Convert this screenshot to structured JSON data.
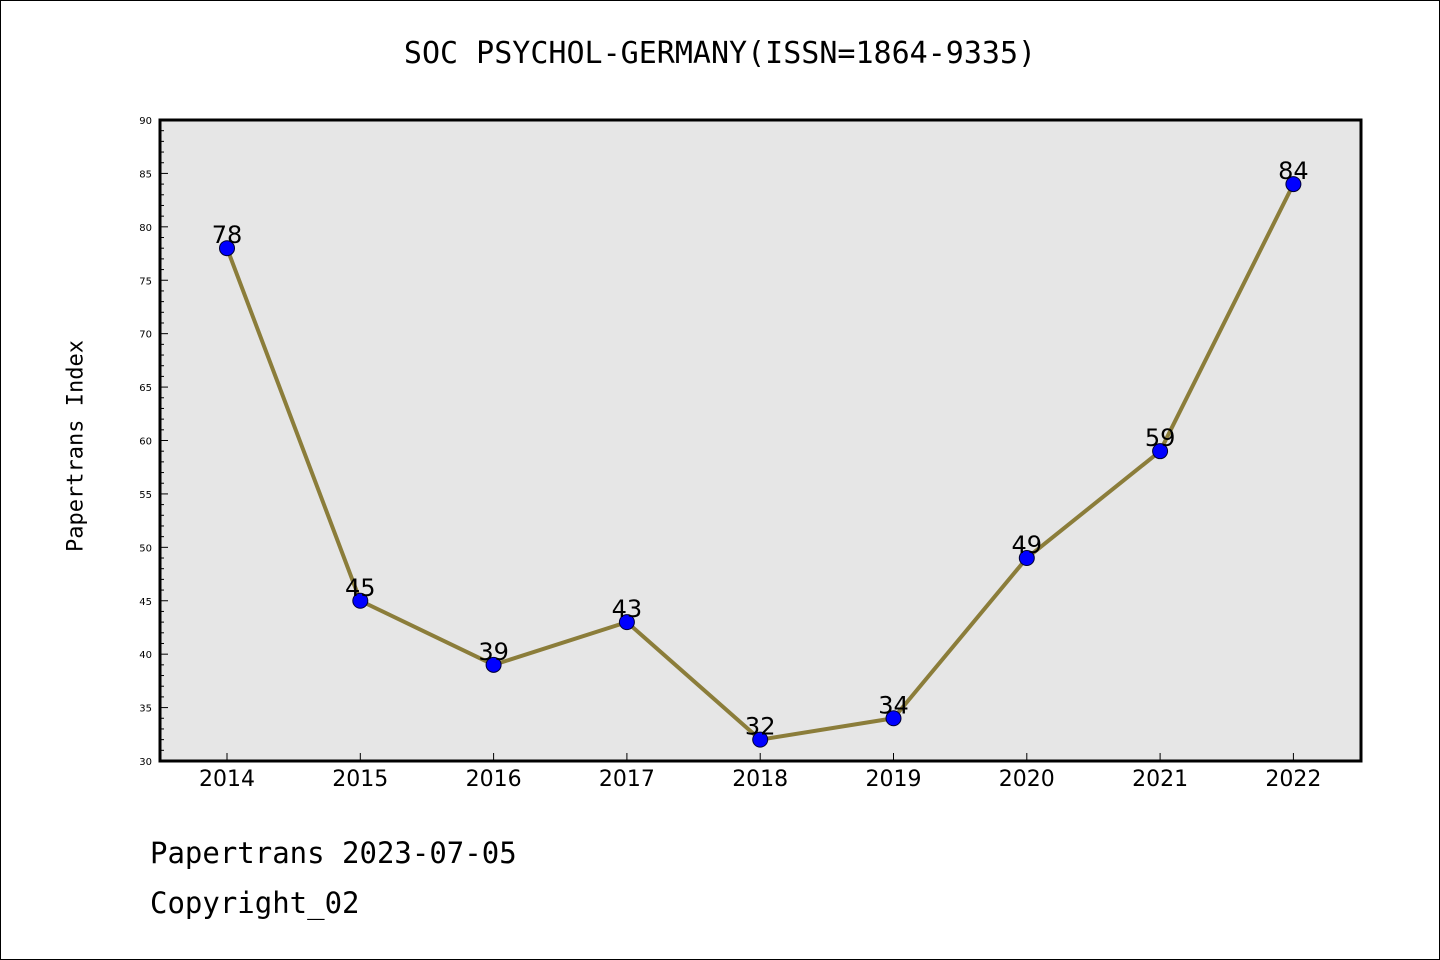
{
  "chart_data": {
    "type": "line",
    "title": "SOC PSYCHOL-GERMANY(ISSN=1864-9335)",
    "xlabel": "",
    "ylabel": "Papertrans Index",
    "categories": [
      "2014",
      "2015",
      "2016",
      "2017",
      "2018",
      "2019",
      "2020",
      "2021",
      "2022"
    ],
    "series": [
      {
        "values": [
          78,
          45,
          39,
          43,
          32,
          34,
          49,
          59,
          84
        ]
      }
    ],
    "ylim": [
      30,
      90
    ],
    "yticks": [
      "30",
      "35",
      "40",
      "45",
      "50",
      "55",
      "60",
      "65",
      "70",
      "75",
      "80",
      "85",
      "90"
    ],
    "grid": false,
    "data_labels": true,
    "colors": {
      "line": "#8b7d3a",
      "marker": "#0000ff",
      "plot_background": "#e6e6e6"
    }
  },
  "footer": {
    "line1": "Papertrans 2023-07-05",
    "line2": "Copyright_02"
  }
}
